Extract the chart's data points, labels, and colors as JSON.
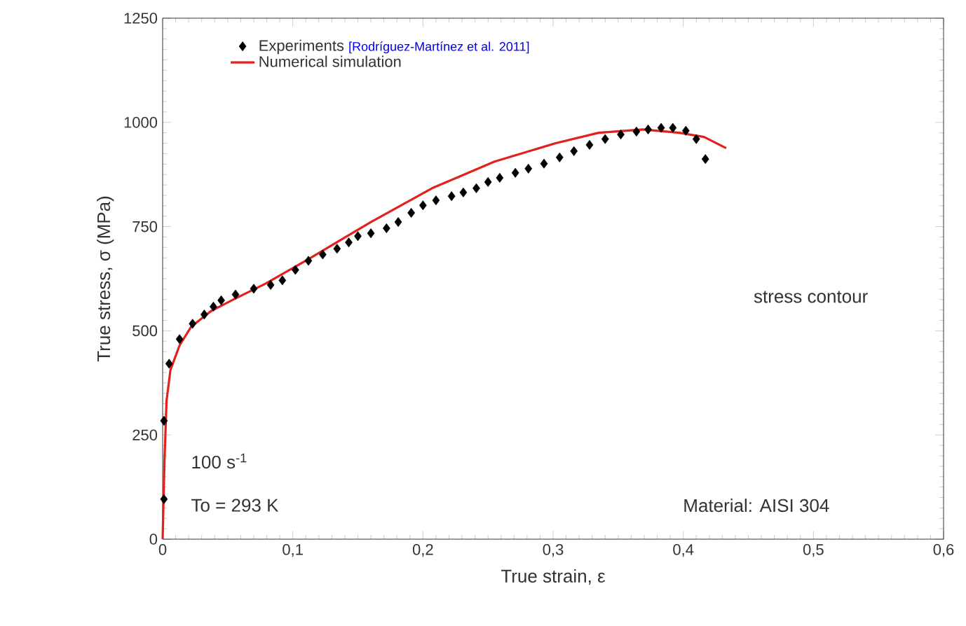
{
  "chart_data": {
    "type": "scatter",
    "xlabel": "True strain, ε",
    "ylabel": "True stress, σ (MPa)",
    "xlim": [
      0,
      0.6
    ],
    "ylim": [
      0,
      1250
    ],
    "xticks": [
      0,
      {
        "value": 0.1,
        "label": "0,1"
      },
      {
        "value": 0.2,
        "label": "0,2"
      },
      {
        "value": 0.3,
        "label": "0,3"
      },
      {
        "value": 0.4,
        "label": "0,4"
      },
      {
        "value": 0.5,
        "label": "0,5"
      },
      {
        "value": 0.6,
        "label": "0,6"
      }
    ],
    "yticks": [
      0,
      250,
      500,
      750,
      1000,
      1250
    ],
    "legend": "top left",
    "grid": false,
    "series": [
      {
        "name": "Experiments",
        "marker": "diamond",
        "color": "#000000",
        "x": [
          0.001,
          0.001,
          0.005,
          0.013,
          0.023,
          0.032,
          0.039,
          0.045,
          0.056,
          0.07,
          0.083,
          0.092,
          0.102,
          0.112,
          0.123,
          0.134,
          0.143,
          0.15,
          0.16,
          0.172,
          0.181,
          0.191,
          0.2,
          0.21,
          0.222,
          0.231,
          0.241,
          0.25,
          0.259,
          0.271,
          0.281,
          0.293,
          0.305,
          0.316,
          0.328,
          0.34,
          0.352,
          0.364,
          0.373,
          0.383,
          0.392,
          0.402,
          0.41,
          0.417
        ],
        "values": [
          96,
          284,
          421,
          480,
          517,
          539,
          558,
          573,
          587,
          601,
          610,
          621,
          646,
          668,
          683,
          697,
          712,
          727,
          734,
          746,
          761,
          783,
          801,
          813,
          823,
          832,
          842,
          857,
          867,
          879,
          889,
          901,
          916,
          931,
          946,
          960,
          971,
          978,
          983,
          987,
          987,
          980,
          960,
          912
        ]
      },
      {
        "name": "Numerical simulation",
        "type": "line",
        "line_style": "solid",
        "color": "#e3201b",
        "x": [
          0,
          0.0014,
          0.003,
          0.006,
          0.013,
          0.022,
          0.037,
          0.055,
          0.079,
          0.112,
          0.16,
          0.207,
          0.255,
          0.302,
          0.335,
          0.369,
          0.397,
          0.416,
          0.433
        ],
        "values": [
          0,
          185,
          332,
          406,
          465,
          510,
          547,
          576,
          613,
          672,
          761,
          842,
          906,
          950,
          975,
          983,
          975,
          965,
          938
        ]
      }
    ],
    "annotations": [
      "[Rodríguez-Martínez et al. 2011]",
      "stress contour",
      "100 s$^{-1}$",
      "To = 293 K",
      "Material: AISI 304"
    ]
  }
}
